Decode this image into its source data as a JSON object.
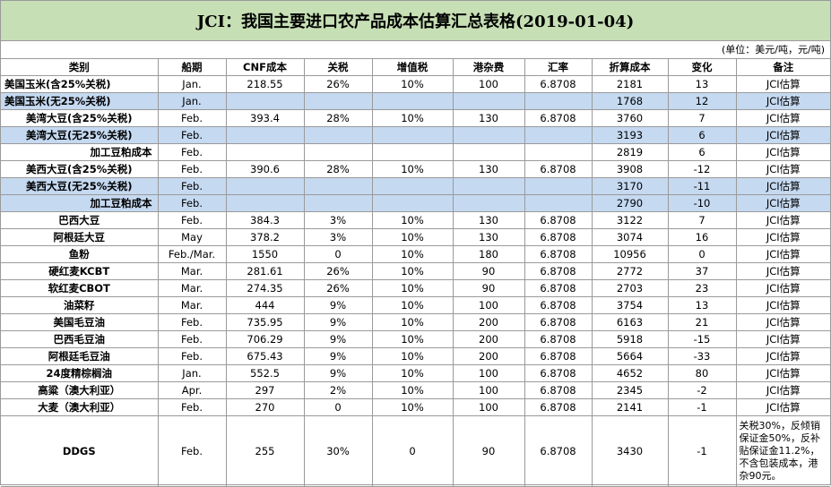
{
  "title": "JCI：我国主要进口农产品成本估算汇总表格(2019-01-04)",
  "unit": "(单位：美元/吨，元/吨)",
  "headers": [
    "类别",
    "船期",
    "CNF成本",
    "关税",
    "增值税",
    "港杂费",
    "汇率",
    "折算成本",
    "变化",
    "备注"
  ],
  "rows": [
    {
      "cells": [
        "美国玉米(含25%关税)",
        "Jan.",
        "218.55",
        "26%",
        "10%",
        "100",
        "6.8708",
        "2181",
        "13",
        "JCI估算"
      ],
      "blue": false,
      "align": "l"
    },
    {
      "cells": [
        "美国玉米(无25%关税)",
        "Jan.",
        "",
        "",
        "",
        "",
        "",
        "1768",
        "12",
        "JCI估算"
      ],
      "blue": true,
      "align": "l"
    },
    {
      "cells": [
        "美湾大豆(含25%关税)",
        "Feb.",
        "393.4",
        "28%",
        "10%",
        "130",
        "6.8708",
        "3760",
        "7",
        "JCI估算"
      ],
      "blue": false,
      "align": "c"
    },
    {
      "cells": [
        "美湾大豆(无25%关税)",
        "Feb.",
        "",
        "",
        "",
        "",
        "",
        "3193",
        "6",
        "JCI估算"
      ],
      "blue": true,
      "align": "c"
    },
    {
      "cells": [
        "加工豆粕成本",
        "Feb.",
        "",
        "",
        "",
        "",
        "",
        "2819",
        "6",
        "JCI估算"
      ],
      "blue": false,
      "align": "r"
    },
    {
      "cells": [
        "美西大豆(含25%关税)",
        "Feb.",
        "390.6",
        "28%",
        "10%",
        "130",
        "6.8708",
        "3908",
        "-12",
        "JCI估算"
      ],
      "blue": false,
      "align": "c"
    },
    {
      "cells": [
        "美西大豆(无25%关税)",
        "Feb.",
        "",
        "",
        "",
        "",
        "",
        "3170",
        "-11",
        "JCI估算"
      ],
      "blue": true,
      "align": "c"
    },
    {
      "cells": [
        "加工豆粕成本",
        "Feb.",
        "",
        "",
        "",
        "",
        "",
        "2790",
        "-10",
        "JCI估算"
      ],
      "blue": true,
      "align": "r"
    },
    {
      "cells": [
        "巴西大豆",
        "Feb.",
        "384.3",
        "3%",
        "10%",
        "130",
        "6.8708",
        "3122",
        "7",
        "JCI估算"
      ],
      "blue": false,
      "align": "c"
    },
    {
      "cells": [
        "阿根廷大豆",
        "May",
        "378.2",
        "3%",
        "10%",
        "130",
        "6.8708",
        "3074",
        "16",
        "JCI估算"
      ],
      "blue": false,
      "align": "c"
    },
    {
      "cells": [
        "鱼粉",
        "Feb./Mar.",
        "1550",
        "0",
        "10%",
        "180",
        "6.8708",
        "10956",
        "0",
        "JCI估算"
      ],
      "blue": false,
      "align": "c"
    },
    {
      "cells": [
        "硬红麦KCBT",
        "Mar.",
        "281.61",
        "26%",
        "10%",
        "90",
        "6.8708",
        "2772",
        "37",
        "JCI估算"
      ],
      "blue": false,
      "align": "c"
    },
    {
      "cells": [
        "软红麦CBOT",
        "Mar.",
        "274.35",
        "26%",
        "10%",
        "90",
        "6.8708",
        "2703",
        "23",
        "JCI估算"
      ],
      "blue": false,
      "align": "c"
    },
    {
      "cells": [
        "油菜籽",
        "Mar.",
        "444",
        "9%",
        "10%",
        "100",
        "6.8708",
        "3754",
        "13",
        "JCI估算"
      ],
      "blue": false,
      "align": "c"
    },
    {
      "cells": [
        "美国毛豆油",
        "Feb.",
        "735.95",
        "9%",
        "10%",
        "200",
        "6.8708",
        "6163",
        "21",
        "JCI估算"
      ],
      "blue": false,
      "align": "c"
    },
    {
      "cells": [
        "巴西毛豆油",
        "Feb.",
        "706.29",
        "9%",
        "10%",
        "200",
        "6.8708",
        "5918",
        "-15",
        "JCI估算"
      ],
      "blue": false,
      "align": "c"
    },
    {
      "cells": [
        "阿根廷毛豆油",
        "Feb.",
        "675.43",
        "9%",
        "10%",
        "200",
        "6.8708",
        "5664",
        "-33",
        "JCI估算"
      ],
      "blue": false,
      "align": "c"
    },
    {
      "cells": [
        "24度精棕榈油",
        "Jan.",
        "552.5",
        "9%",
        "10%",
        "100",
        "6.8708",
        "4652",
        "80",
        "JCI估算"
      ],
      "blue": false,
      "align": "c"
    },
    {
      "cells": [
        "高粱（澳大利亚）",
        "Apr.",
        "297",
        "2%",
        "10%",
        "100",
        "6.8708",
        "2345",
        "-2",
        "JCI估算"
      ],
      "blue": false,
      "align": "c"
    },
    {
      "cells": [
        "大麦（澳大利亚）",
        "Feb.",
        "270",
        "0",
        "10%",
        "100",
        "6.8708",
        "2141",
        "-1",
        "JCI估算"
      ],
      "blue": false,
      "align": "c"
    },
    {
      "cells": [
        "DDGS",
        "Feb.",
        "255",
        "30%",
        "0",
        "90",
        "6.8708",
        "3430",
        "-1",
        "关税30%，反倾销保证金50%，反补贴保证金11.2%，不含包装成本，港杂90元。"
      ],
      "blue": false,
      "align": "c",
      "tall": true
    }
  ]
}
